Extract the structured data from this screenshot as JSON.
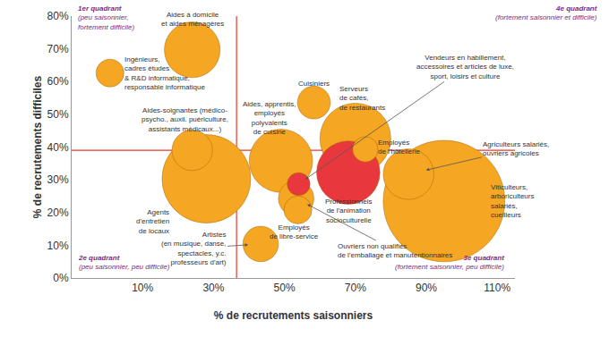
{
  "chart_data": {
    "type": "scatter",
    "marker": "bubble",
    "xlabel": "% de recrutements saisonniers",
    "ylabel": "% de recrutements difficiles",
    "xlim": [
      -10,
      115
    ],
    "xticks": [
      {
        "value": 10,
        "label": "10%"
      },
      {
        "value": 30,
        "label": "30%"
      },
      {
        "value": 50,
        "label": "50%"
      },
      {
        "value": 70,
        "label": "70%"
      },
      {
        "value": 90,
        "label": "90%"
      },
      {
        "value": 110,
        "label": "110%"
      }
    ],
    "ylim": [
      0,
      80
    ],
    "yticks": [
      {
        "value": 0,
        "label": "0%"
      },
      {
        "value": 10,
        "label": "10%"
      },
      {
        "value": 20,
        "label": "20%"
      },
      {
        "value": 30,
        "label": "30%"
      },
      {
        "value": 40,
        "label": "40%"
      },
      {
        "value": 50,
        "label": "50%"
      },
      {
        "value": 60,
        "label": "60%"
      },
      {
        "value": 70,
        "label": "70%"
      },
      {
        "value": 80,
        "label": "80%"
      }
    ],
    "grid": false,
    "labels": [
      "Viticulteurs,\narboriculteurs\nsalariés,\ncueilleurs",
      "Agents\nd'entretien\nde locaux",
      "Serveurs\nde cafés,\nde restaurants",
      "Professionnels\nde l'animation\nsocioculturelle",
      "Aides, apprentis,\nemployés\npolyvalents\nde cuisine",
      "Aides à domicile\net aides ménagères",
      "Agriculteurs salariés,\nouvriers agricoles",
      "Aides-soignantes (médico-\npsycho., auxil. puériculture,\nassistants médicaux...)",
      "Ouvriers non qualifiés\nde l'emballage et manutentionnaires",
      "Artistes\n(en musique, danse,\nspectacles, y.c.\nprofesseurs d'art)",
      "Cuisiniers",
      "Ingénieurs,\ncadres études\n& R&D informatique,\nresponsable informatique",
      "Employés\nde libre-service",
      "Employés\nde l'hôtellerie",
      "Vendeurs en habillement,\naccessoires et articles de luxe,\nsport, loisirs et culture"
    ],
    "x": [
      95,
      28,
      70,
      68,
      49,
      24,
      85,
      24,
      53.3,
      43.3,
      58.3,
      0.8,
      53.8,
      72.8,
      54
    ],
    "y": [
      23.5,
      30.3,
      42.6,
      32.2,
      35.8,
      69.7,
      31.7,
      39,
      24.3,
      10.4,
      53.6,
      62.6,
      20.8,
      39.3,
      28.7
    ],
    "sizes": [
      2304,
      1225,
      784,
      625,
      625,
      484,
      400,
      256,
      196,
      196,
      169,
      121,
      121,
      100,
      81
    ],
    "colors": [
      "#F5A623",
      "#F5A623",
      "#F5A623",
      "#E8383D",
      "#F5A623",
      "#F5A623",
      "#F5A623",
      "#F5A623",
      "#F5A623",
      "#F5A623",
      "#F5A623",
      "#F5A623",
      "#F5A623",
      "#F5A623",
      "#E8383D"
    ],
    "reference_lines": {
      "x": 36.5,
      "y": 39
    },
    "annotations": [
      "1er quadrant\n(peu saisonnier,\nfortement difficile)",
      "4e quadrant\n(fortement saisonnier et difficile)",
      "2e quadrant\n(peu saisonnier, peu difficile)",
      "3e quadrant\n(fortement saisonnier, peu difficile)"
    ]
  }
}
